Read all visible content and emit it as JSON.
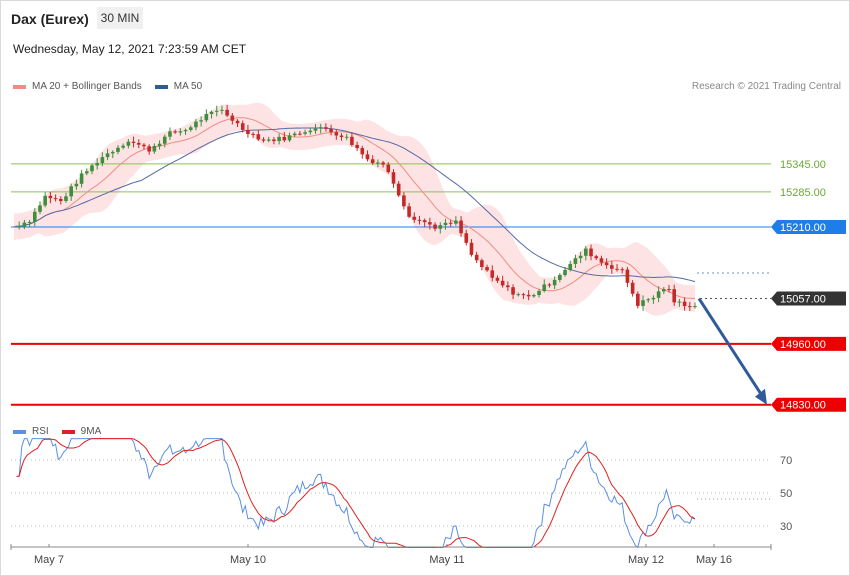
{
  "header": {
    "title": "Dax (Eurex)",
    "timeframe": "30 MIN",
    "datetime": "Wednesday, May 12, 2021 7:23:59 AM CET",
    "credit": "Research © 2021 Trading Central"
  },
  "legend_main": [
    {
      "label": "MA 20 + Bollinger Bands",
      "color": "#f28b82"
    },
    {
      "label": "MA 50",
      "color": "#2f5b9a"
    }
  ],
  "legend_rsi": [
    {
      "label": "RSI",
      "color": "#5b8fe0"
    },
    {
      "label": "9MA",
      "color": "#e02020"
    }
  ],
  "chart_data": [
    {
      "type": "candlestick",
      "x_labels": [
        "May 7",
        "May 10",
        "May 11",
        "May 12",
        "May 16"
      ],
      "ylim": [
        14800,
        15620
      ],
      "levels": [
        {
          "value": 15345.0,
          "label": "15345.00",
          "style": "resistance",
          "color": "#8bc34a"
        },
        {
          "value": 15285.0,
          "label": "15285.00",
          "style": "resistance",
          "color": "#8bc34a"
        },
        {
          "value": 15210.0,
          "label": "15210.00",
          "style": "pivot",
          "color": "#1e7de8"
        },
        {
          "value": 15057.0,
          "label": "15057.00",
          "style": "last",
          "color": "#333333"
        },
        {
          "value": 14960.0,
          "label": "14960.00",
          "style": "support",
          "color": "#ee0000"
        },
        {
          "value": 14830.0,
          "label": "14830.00",
          "style": "support",
          "color": "#ee0000"
        }
      ],
      "forecast_arrow": {
        "from": 15057,
        "to": 14830,
        "color": "#2f5b9a"
      }
    },
    {
      "type": "line",
      "name": "RSI",
      "ylim": [
        15,
        85
      ],
      "ticks": [
        70,
        50,
        30
      ]
    }
  ]
}
